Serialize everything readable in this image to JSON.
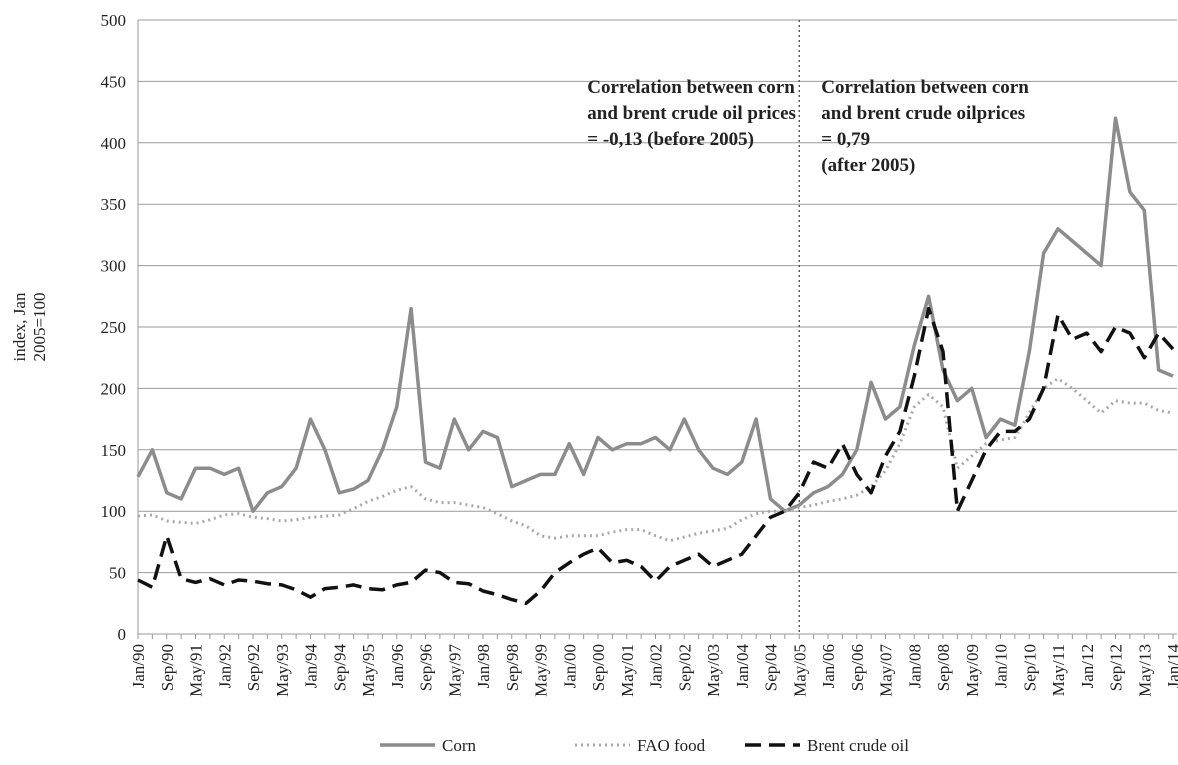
{
  "chart_data": {
    "type": "line",
    "y_label": [
      "index, Jan",
      "2005=100"
    ],
    "annotations": [
      {
        "lines": [
          "Correlation between corn",
          "and brent crude oil prices",
          "= -0,13 (before 2005)"
        ],
        "category": "Jan/00"
      },
      {
        "lines": [
          "Correlation between corn",
          "and brent crude oilprices",
          "= 0,79",
          "(after 2005)"
        ],
        "category": "May/05"
      }
    ],
    "vline": "May/05",
    "categories": [
      "Jan/90",
      null,
      "Sep/90",
      null,
      "May/91",
      null,
      "Jan/92",
      null,
      "Sep/92",
      null,
      "May/93",
      null,
      "Jan/94",
      null,
      "Sep/94",
      null,
      "May/95",
      null,
      "Jan/96",
      null,
      "Sep/96",
      null,
      "May/97",
      null,
      "Jan/98",
      null,
      "Sep/98",
      null,
      "May/99",
      null,
      "Jan/00",
      null,
      "Sep/00",
      null,
      "May/01",
      null,
      "Jan/02",
      null,
      "Sep/02",
      null,
      "May/03",
      null,
      "Jan/04",
      null,
      "Sep/04",
      null,
      "May/05",
      null,
      "Jan/06",
      null,
      "Sep/06",
      null,
      "May/07",
      null,
      "Jan/08",
      null,
      "Sep/08",
      null,
      "May/09",
      null,
      "Jan/10",
      null,
      "Sep/10",
      null,
      "May/11",
      null,
      "Jan/12",
      null,
      "Sep/12",
      null,
      "May/13",
      null,
      "Jan/14"
    ],
    "series": [
      {
        "name": "Corn",
        "color": "#8c8c8c",
        "style": "solid",
        "values": [
          128,
          150,
          115,
          110,
          135,
          135,
          130,
          135,
          100,
          115,
          120,
          135,
          175,
          150,
          115,
          118,
          125,
          150,
          185,
          265,
          140,
          135,
          175,
          150,
          165,
          160,
          120,
          125,
          130,
          130,
          155,
          130,
          160,
          150,
          155,
          155,
          160,
          150,
          175,
          150,
          135,
          130,
          140,
          175,
          110,
          100,
          105,
          115,
          120,
          130,
          150,
          205,
          175,
          185,
          235,
          275,
          215,
          190,
          200,
          160,
          175,
          170,
          230,
          310,
          330,
          320,
          310,
          300,
          420,
          360,
          345,
          215,
          210
        ]
      },
      {
        "name": "FAO food",
        "color": "#a8a8a8",
        "style": "dotted",
        "values": [
          96,
          97,
          92,
          91,
          90,
          93,
          97,
          98,
          95,
          94,
          92,
          93,
          95,
          96,
          97,
          102,
          108,
          112,
          117,
          120,
          110,
          107,
          107,
          105,
          103,
          98,
          92,
          88,
          80,
          78,
          80,
          80,
          80,
          83,
          85,
          85,
          80,
          76,
          79,
          82,
          84,
          86,
          93,
          98,
          100,
          100,
          103,
          105,
          108,
          110,
          113,
          120,
          133,
          155,
          185,
          195,
          185,
          135,
          145,
          155,
          158,
          160,
          180,
          200,
          208,
          200,
          190,
          180,
          190,
          188,
          188,
          182,
          180
        ]
      },
      {
        "name": "Brent crude oil",
        "color": "#111111",
        "style": "dashed",
        "values": [
          44,
          38,
          80,
          45,
          42,
          45,
          40,
          44,
          43,
          41,
          40,
          36,
          30,
          37,
          38,
          40,
          37,
          36,
          40,
          42,
          52,
          50,
          42,
          41,
          35,
          32,
          28,
          25,
          35,
          50,
          58,
          65,
          70,
          58,
          60,
          55,
          43,
          55,
          60,
          65,
          55,
          60,
          65,
          80,
          95,
          100,
          115,
          140,
          135,
          155,
          130,
          115,
          145,
          165,
          210,
          265,
          230,
          100,
          125,
          150,
          165,
          165,
          175,
          200,
          260,
          240,
          245,
          230,
          250,
          245,
          225,
          245,
          232
        ]
      }
    ],
    "ylim": [
      0,
      500
    ],
    "yticks": [
      0,
      50,
      100,
      150,
      200,
      250,
      300,
      350,
      400,
      450,
      500
    ],
    "grid": true,
    "legend": "bottom"
  }
}
